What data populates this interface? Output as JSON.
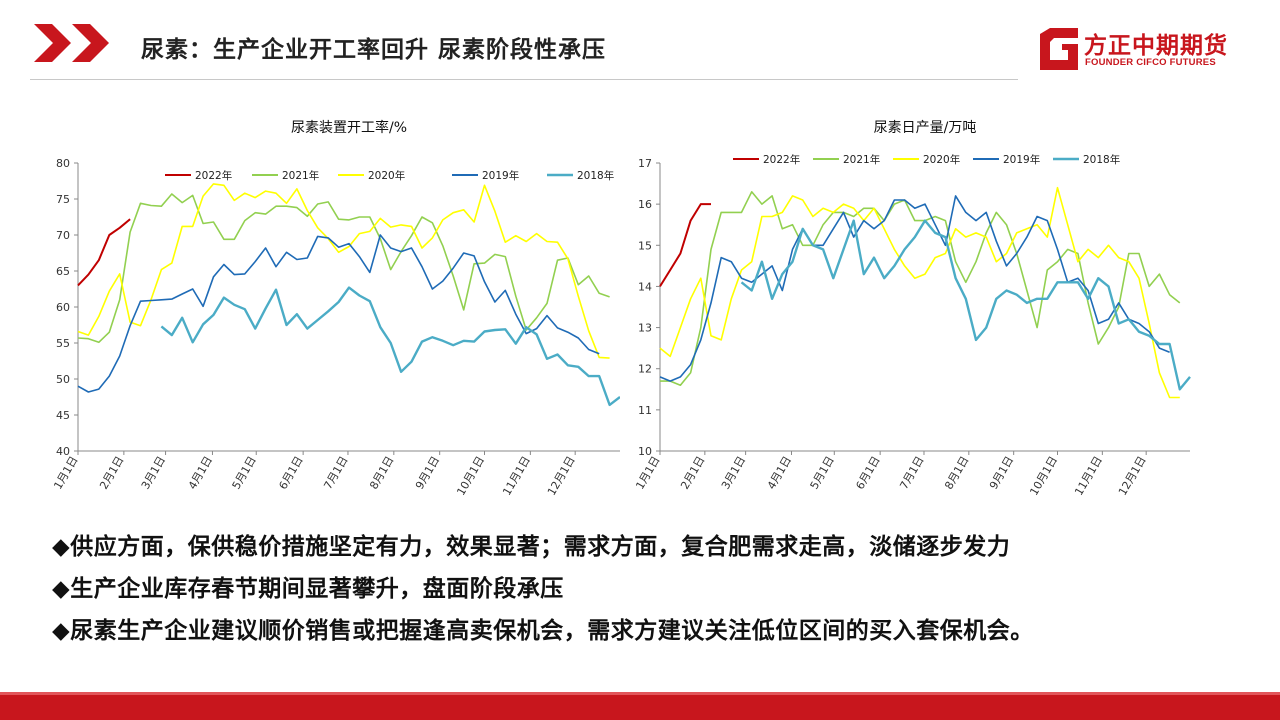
{
  "header": {
    "title": "尿素：生产企业开工率回升 尿素阶段性承压",
    "logo_cn": "方正中期期货",
    "logo_en": "FOUNDER CIFCO FUTURES",
    "accent_color": "#c8161d"
  },
  "bullets": [
    {
      "symbol": "◆",
      "text": "供应方面，保供稳价措施坚定有力，效果显著；需求方面，复合肥需求走高，淡储逐步发力"
    },
    {
      "symbol": "◆",
      "text": "生产企业库存春节期间显著攀升，盘面阶段承压"
    },
    {
      "symbol": "◆",
      "text": "尿素生产企业建议顺价销售或把握逢高卖保机会，需求方建议关注低位区间的买入套保机会。"
    }
  ],
  "chart_data": [
    {
      "type": "line",
      "title": "尿素装置开工率/%",
      "ylim": [
        40,
        80
      ],
      "yticks": [
        40,
        45,
        50,
        55,
        60,
        65,
        70,
        75,
        80
      ],
      "xlim": [
        1,
        53
      ],
      "xticks": [
        {
          "label": "1月1日",
          "week": 1
        },
        {
          "label": "2月1日",
          "week": 5.4
        },
        {
          "label": "3月1日",
          "week": 9.4
        },
        {
          "label": "4月1日",
          "week": 13.9
        },
        {
          "label": "5月1日",
          "week": 18.1
        },
        {
          "label": "6月1日",
          "week": 22.6
        },
        {
          "label": "7月1日",
          "week": 26.9
        },
        {
          "label": "8月1日",
          "week": 31.3
        },
        {
          "label": "9月1日",
          "week": 35.7
        },
        {
          "label": "10月1日",
          "week": 40
        },
        {
          "label": "11月1日",
          "week": 44.4
        },
        {
          "label": "12月1日",
          "week": 48.7
        }
      ],
      "grid": false,
      "legend_position": "top",
      "series": [
        {
          "name": "2022年",
          "color": "#c00000",
          "width": 2,
          "start": 1,
          "values": [
            63.0,
            64.5,
            66.5,
            70.0,
            71.0,
            72.2
          ]
        },
        {
          "name": "2021年",
          "color": "#92d050",
          "width": 1.6,
          "start": 1,
          "values": [
            55.7,
            55.6,
            55.1,
            56.5,
            61.0,
            70.4,
            74.4,
            74.1,
            74.0,
            75.7,
            74.5,
            75.5,
            71.6,
            71.8,
            69.4,
            69.4,
            72.0,
            73.1,
            72.9,
            74.0,
            74.0,
            73.8,
            72.6,
            74.3,
            74.6,
            72.2,
            72.1,
            72.5,
            72.5,
            69.5,
            65.2,
            67.7,
            69.9,
            72.5,
            71.7,
            68.5,
            64.3,
            59.6,
            66.0,
            66.1,
            67.3,
            67.0,
            61.5,
            56.8,
            58.5,
            60.5,
            66.5,
            66.8,
            63.1,
            64.3,
            61.9,
            61.4
          ]
        },
        {
          "name": "2020年",
          "color": "#ffff00",
          "width": 1.6,
          "start": 1,
          "values": [
            56.6,
            56.1,
            58.7,
            62.2,
            64.6,
            57.9,
            57.4,
            61.0,
            65.2,
            66.1,
            71.2,
            71.2,
            75.4,
            77.1,
            76.9,
            74.8,
            75.8,
            75.2,
            76.1,
            75.8,
            74.4,
            76.4,
            73.4,
            71.0,
            69.5,
            67.6,
            68.4,
            70.2,
            70.5,
            72.3,
            71.1,
            71.4,
            71.2,
            68.2,
            69.6,
            72.1,
            73.1,
            73.5,
            71.8,
            76.9,
            73.3,
            69.0,
            69.9,
            69.1,
            70.2,
            69.1,
            69.0,
            66.7,
            61.5,
            56.7,
            53.0,
            52.9
          ]
        },
        {
          "name": "2019年",
          "color": "#1f6bb6",
          "width": 1.6,
          "start": 1,
          "values": [
            49.0,
            48.2,
            48.6,
            50.4,
            53.2,
            57.4,
            60.8,
            60.9,
            61.0,
            61.1,
            61.8,
            62.5,
            60.1,
            64.2,
            65.9,
            64.5,
            64.6,
            66.3,
            68.2,
            65.6,
            67.6,
            66.6,
            66.8,
            69.8,
            69.6,
            68.3,
            68.8,
            67.0,
            64.8,
            70.0,
            68.2,
            67.7,
            68.2,
            65.6,
            62.5,
            63.6,
            65.4,
            67.5,
            67.1,
            63.5,
            60.7,
            62.3,
            59.0,
            56.3,
            57.0,
            58.8,
            57.1,
            56.5,
            55.7,
            54.1,
            53.5
          ]
        },
        {
          "name": "2018年",
          "color": "#4bacc6",
          "width": 2.4,
          "start": 9,
          "values": [
            57.3,
            56.1,
            58.5,
            55.1,
            57.6,
            58.9,
            61.3,
            60.3,
            59.7,
            57.0,
            59.8,
            62.4,
            57.5,
            59.0,
            57.0,
            58.2,
            59.4,
            60.7,
            62.7,
            61.6,
            60.8,
            57.2,
            55.0,
            51.0,
            52.4,
            55.2,
            55.8,
            55.3,
            54.7,
            55.3,
            55.2,
            56.6,
            56.8,
            56.9,
            54.9,
            57.2,
            56.2,
            52.8,
            53.4,
            51.9,
            51.7,
            50.4,
            50.4,
            46.4,
            47.5
          ]
        }
      ]
    },
    {
      "type": "line",
      "title": "尿素日产量/万吨",
      "ylim": [
        10,
        17
      ],
      "yticks": [
        10,
        11,
        12,
        13,
        14,
        15,
        16,
        17
      ],
      "xlim": [
        1,
        53
      ],
      "xticks": [
        {
          "label": "1月1日",
          "week": 1
        },
        {
          "label": "2月1日",
          "week": 5.4
        },
        {
          "label": "3月1日",
          "week": 9.4
        },
        {
          "label": "4月1日",
          "week": 13.9
        },
        {
          "label": "5月1日",
          "week": 18.1
        },
        {
          "label": "6月1日",
          "week": 22.6
        },
        {
          "label": "7月1日",
          "week": 26.9
        },
        {
          "label": "8月1日",
          "week": 31.3
        },
        {
          "label": "9月1日",
          "week": 35.7
        },
        {
          "label": "10月1日",
          "week": 40
        },
        {
          "label": "11月1日",
          "week": 44.4
        },
        {
          "label": "12月1日",
          "week": 48.7
        }
      ],
      "grid": false,
      "legend_position": "top",
      "series": [
        {
          "name": "2022年",
          "color": "#c00000",
          "width": 2,
          "start": 1,
          "values": [
            14.0,
            14.4,
            14.8,
            15.6,
            16.0,
            16.0
          ]
        },
        {
          "name": "2021年",
          "color": "#92d050",
          "width": 1.6,
          "start": 1,
          "values": [
            11.7,
            11.7,
            11.6,
            11.9,
            13.0,
            14.9,
            15.8,
            15.8,
            15.8,
            16.3,
            16.0,
            16.2,
            15.4,
            15.5,
            15.0,
            15.0,
            15.5,
            15.8,
            15.8,
            15.7,
            15.9,
            15.9,
            15.6,
            16.0,
            16.1,
            15.6,
            15.6,
            15.7,
            15.6,
            14.6,
            14.1,
            14.6,
            15.3,
            15.8,
            15.5,
            14.8,
            13.9,
            13.0,
            14.4,
            14.6,
            14.9,
            14.8,
            13.6,
            12.6,
            13.0,
            13.5,
            14.8,
            14.8,
            14.0,
            14.3,
            13.8,
            13.6
          ]
        },
        {
          "name": "2020年",
          "color": "#ffff00",
          "width": 1.6,
          "start": 1,
          "values": [
            12.5,
            12.3,
            13.0,
            13.7,
            14.2,
            12.8,
            12.7,
            13.7,
            14.4,
            14.6,
            15.7,
            15.7,
            15.8,
            16.2,
            16.1,
            15.7,
            15.9,
            15.8,
            16.0,
            15.9,
            15.6,
            15.9,
            15.4,
            14.9,
            14.5,
            14.2,
            14.3,
            14.7,
            14.8,
            15.4,
            15.2,
            15.3,
            15.2,
            14.6,
            14.8,
            15.3,
            15.4,
            15.5,
            15.2,
            16.4,
            15.5,
            14.6,
            14.9,
            14.7,
            15.0,
            14.7,
            14.6,
            14.2,
            13.1,
            11.9,
            11.3,
            11.3
          ]
        },
        {
          "name": "2019年",
          "color": "#1f6bb6",
          "width": 1.6,
          "start": 1,
          "values": [
            11.8,
            11.7,
            11.8,
            12.1,
            12.7,
            13.6,
            14.7,
            14.6,
            14.2,
            14.1,
            14.3,
            14.5,
            13.9,
            14.9,
            15.4,
            15.0,
            15.0,
            15.4,
            15.8,
            15.2,
            15.6,
            15.4,
            15.6,
            16.1,
            16.1,
            15.9,
            16.0,
            15.5,
            15.0,
            16.2,
            15.8,
            15.6,
            15.8,
            15.1,
            14.5,
            14.8,
            15.2,
            15.7,
            15.6,
            14.9,
            14.1,
            14.2,
            13.9,
            13.1,
            13.2,
            13.6,
            13.2,
            13.1,
            12.9,
            12.5,
            12.4
          ]
        },
        {
          "name": "2018年",
          "color": "#4bacc6",
          "width": 2.4,
          "start": 9,
          "values": [
            14.1,
            13.9,
            14.6,
            13.7,
            14.3,
            14.6,
            15.4,
            15.0,
            14.9,
            14.2,
            14.9,
            15.6,
            14.3,
            14.7,
            14.2,
            14.5,
            14.9,
            15.2,
            15.6,
            15.3,
            15.2,
            14.2,
            13.7,
            12.7,
            13.0,
            13.7,
            13.9,
            13.8,
            13.6,
            13.7,
            13.7,
            14.1,
            14.1,
            14.1,
            13.7,
            14.2,
            14.0,
            13.1,
            13.2,
            12.9,
            12.8,
            12.6,
            12.6,
            11.5,
            11.8
          ]
        }
      ]
    }
  ]
}
